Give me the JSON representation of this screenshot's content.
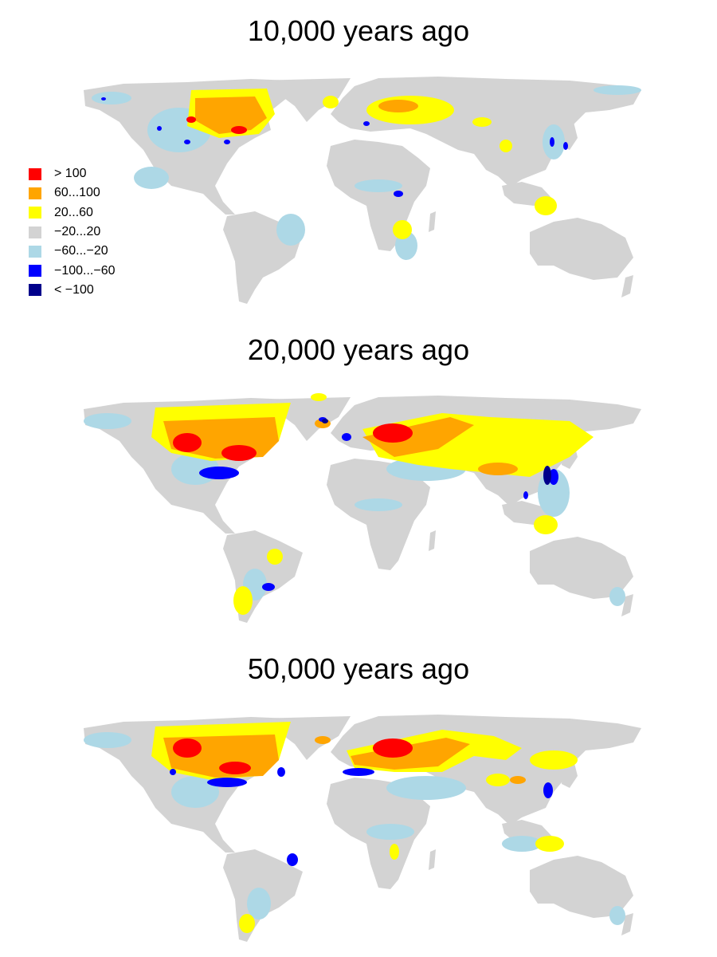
{
  "panels": [
    {
      "title": "10,000 years ago"
    },
    {
      "title": "20,000 years ago"
    },
    {
      "title": "50,000 years ago"
    }
  ],
  "legend": [
    {
      "label": "> 100",
      "color": "#ff0000"
    },
    {
      "label": "60...100",
      "color": "#ffa500"
    },
    {
      "label": "20...60",
      "color": "#ffff00"
    },
    {
      "label": "−20...20",
      "color": "#d3d3d3"
    },
    {
      "label": "−60...−20",
      "color": "#add8e6"
    },
    {
      "label": "−100...−60",
      "color": "#0000ff"
    },
    {
      "label": "< −100",
      "color": "#00008b"
    }
  ]
}
